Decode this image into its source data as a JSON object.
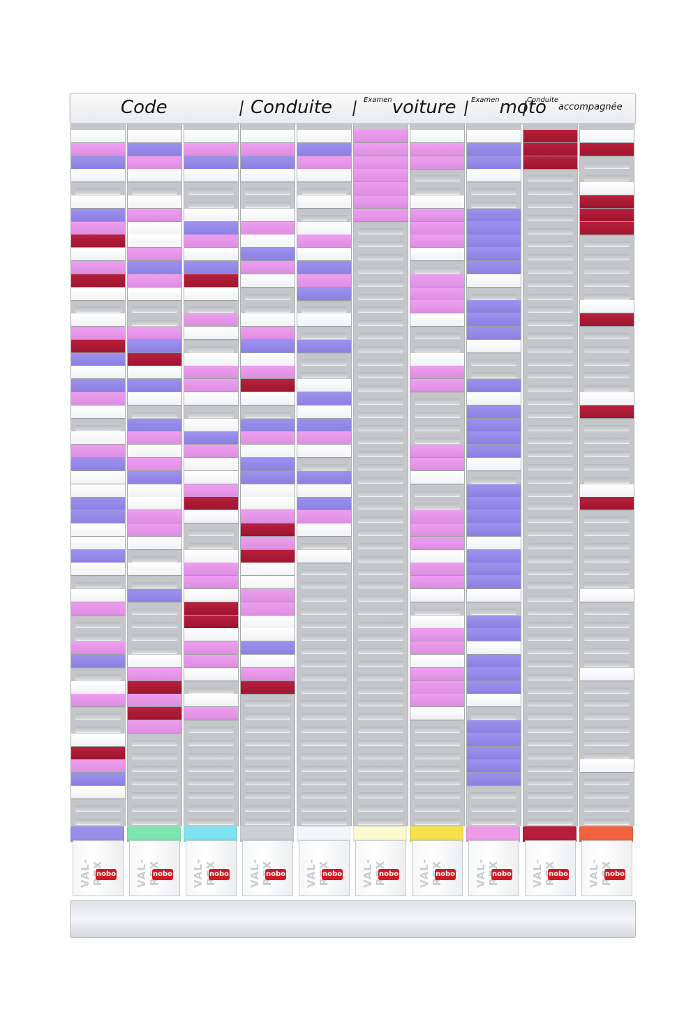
{
  "header": {
    "code": "Code",
    "conduite": "Conduite",
    "examen1": "Examen",
    "voiture": "voiture",
    "examen2": "Examen",
    "moto": "moto",
    "conduite_small": "Conduite",
    "accompagnee": "accompagnée"
  },
  "boxes": [
    {
      "brand": "VAL-REX",
      "logo": "nobo",
      "color": "#9a8fe8"
    },
    {
      "brand": "VAL-REX",
      "logo": "nobo",
      "color": "#7ee5b0"
    },
    {
      "brand": "VAL-REX",
      "logo": "nobo",
      "color": "#7fe4ef"
    },
    {
      "brand": "VAL-REX",
      "logo": "nobo",
      "color": "#cdd0d3"
    },
    {
      "brand": "VAL-REX",
      "logo": "nobo",
      "color": "#f4f5f7"
    },
    {
      "brand": "VAL-REX",
      "logo": "nobo",
      "color": "#fafad0"
    },
    {
      "brand": "VAL-REX",
      "logo": "nobo",
      "color": "#f5e24a"
    },
    {
      "brand": "VAL-REX",
      "logo": "nobo",
      "color": "#ee9ce8"
    },
    {
      "brand": "VAL-REX",
      "logo": "nobo",
      "color": "#b51d3a"
    },
    {
      "brand": "VAL-REX",
      "logo": "nobo",
      "color": "#f2623e"
    }
  ],
  "columns": [
    {
      "cards": "WPBW.WBPRWPRW.WPRBWBPW.WPBWWBBWWBW.WP..PB.WP..WRPBW"
    },
    {
      "cards": "WBPW.WPWWPBPW..PBRWBW.BPWPBWWPPW.W.B....WPRPRP"
    },
    {
      "cards": "WPBW..WBPWBRW.PW.WPPW.WBPWWPRW..WPPWRRWPPW.WP"
    },
    {
      "cards": "WPBW..WPWBPW..WPBWPRW.BPWBBWWPRPRWWPPWWBWPR"
    },
    {
      "cards": "WBPW.W.WPWBPB.W.B..WBWBPW.BWBPW.W"
    },
    {
      "cards": "PPPPPPP"
    },
    {
      "cards": "WPP..WPPPW.PPPW..WPP....PPW..PPPWPPW.WPPWPPPW"
    },
    {
      "cards": "WBBW..BBBBBW.BBBW..BWBBBBW.BBBBWBBBW.BBWBBBW.BBBBB"
    },
    {
      "cards": "RRR"
    },
    {
      "cards": "WR..WRRR.....WR.....WR.....WR......W.....W......W.....W"
    }
  ]
}
